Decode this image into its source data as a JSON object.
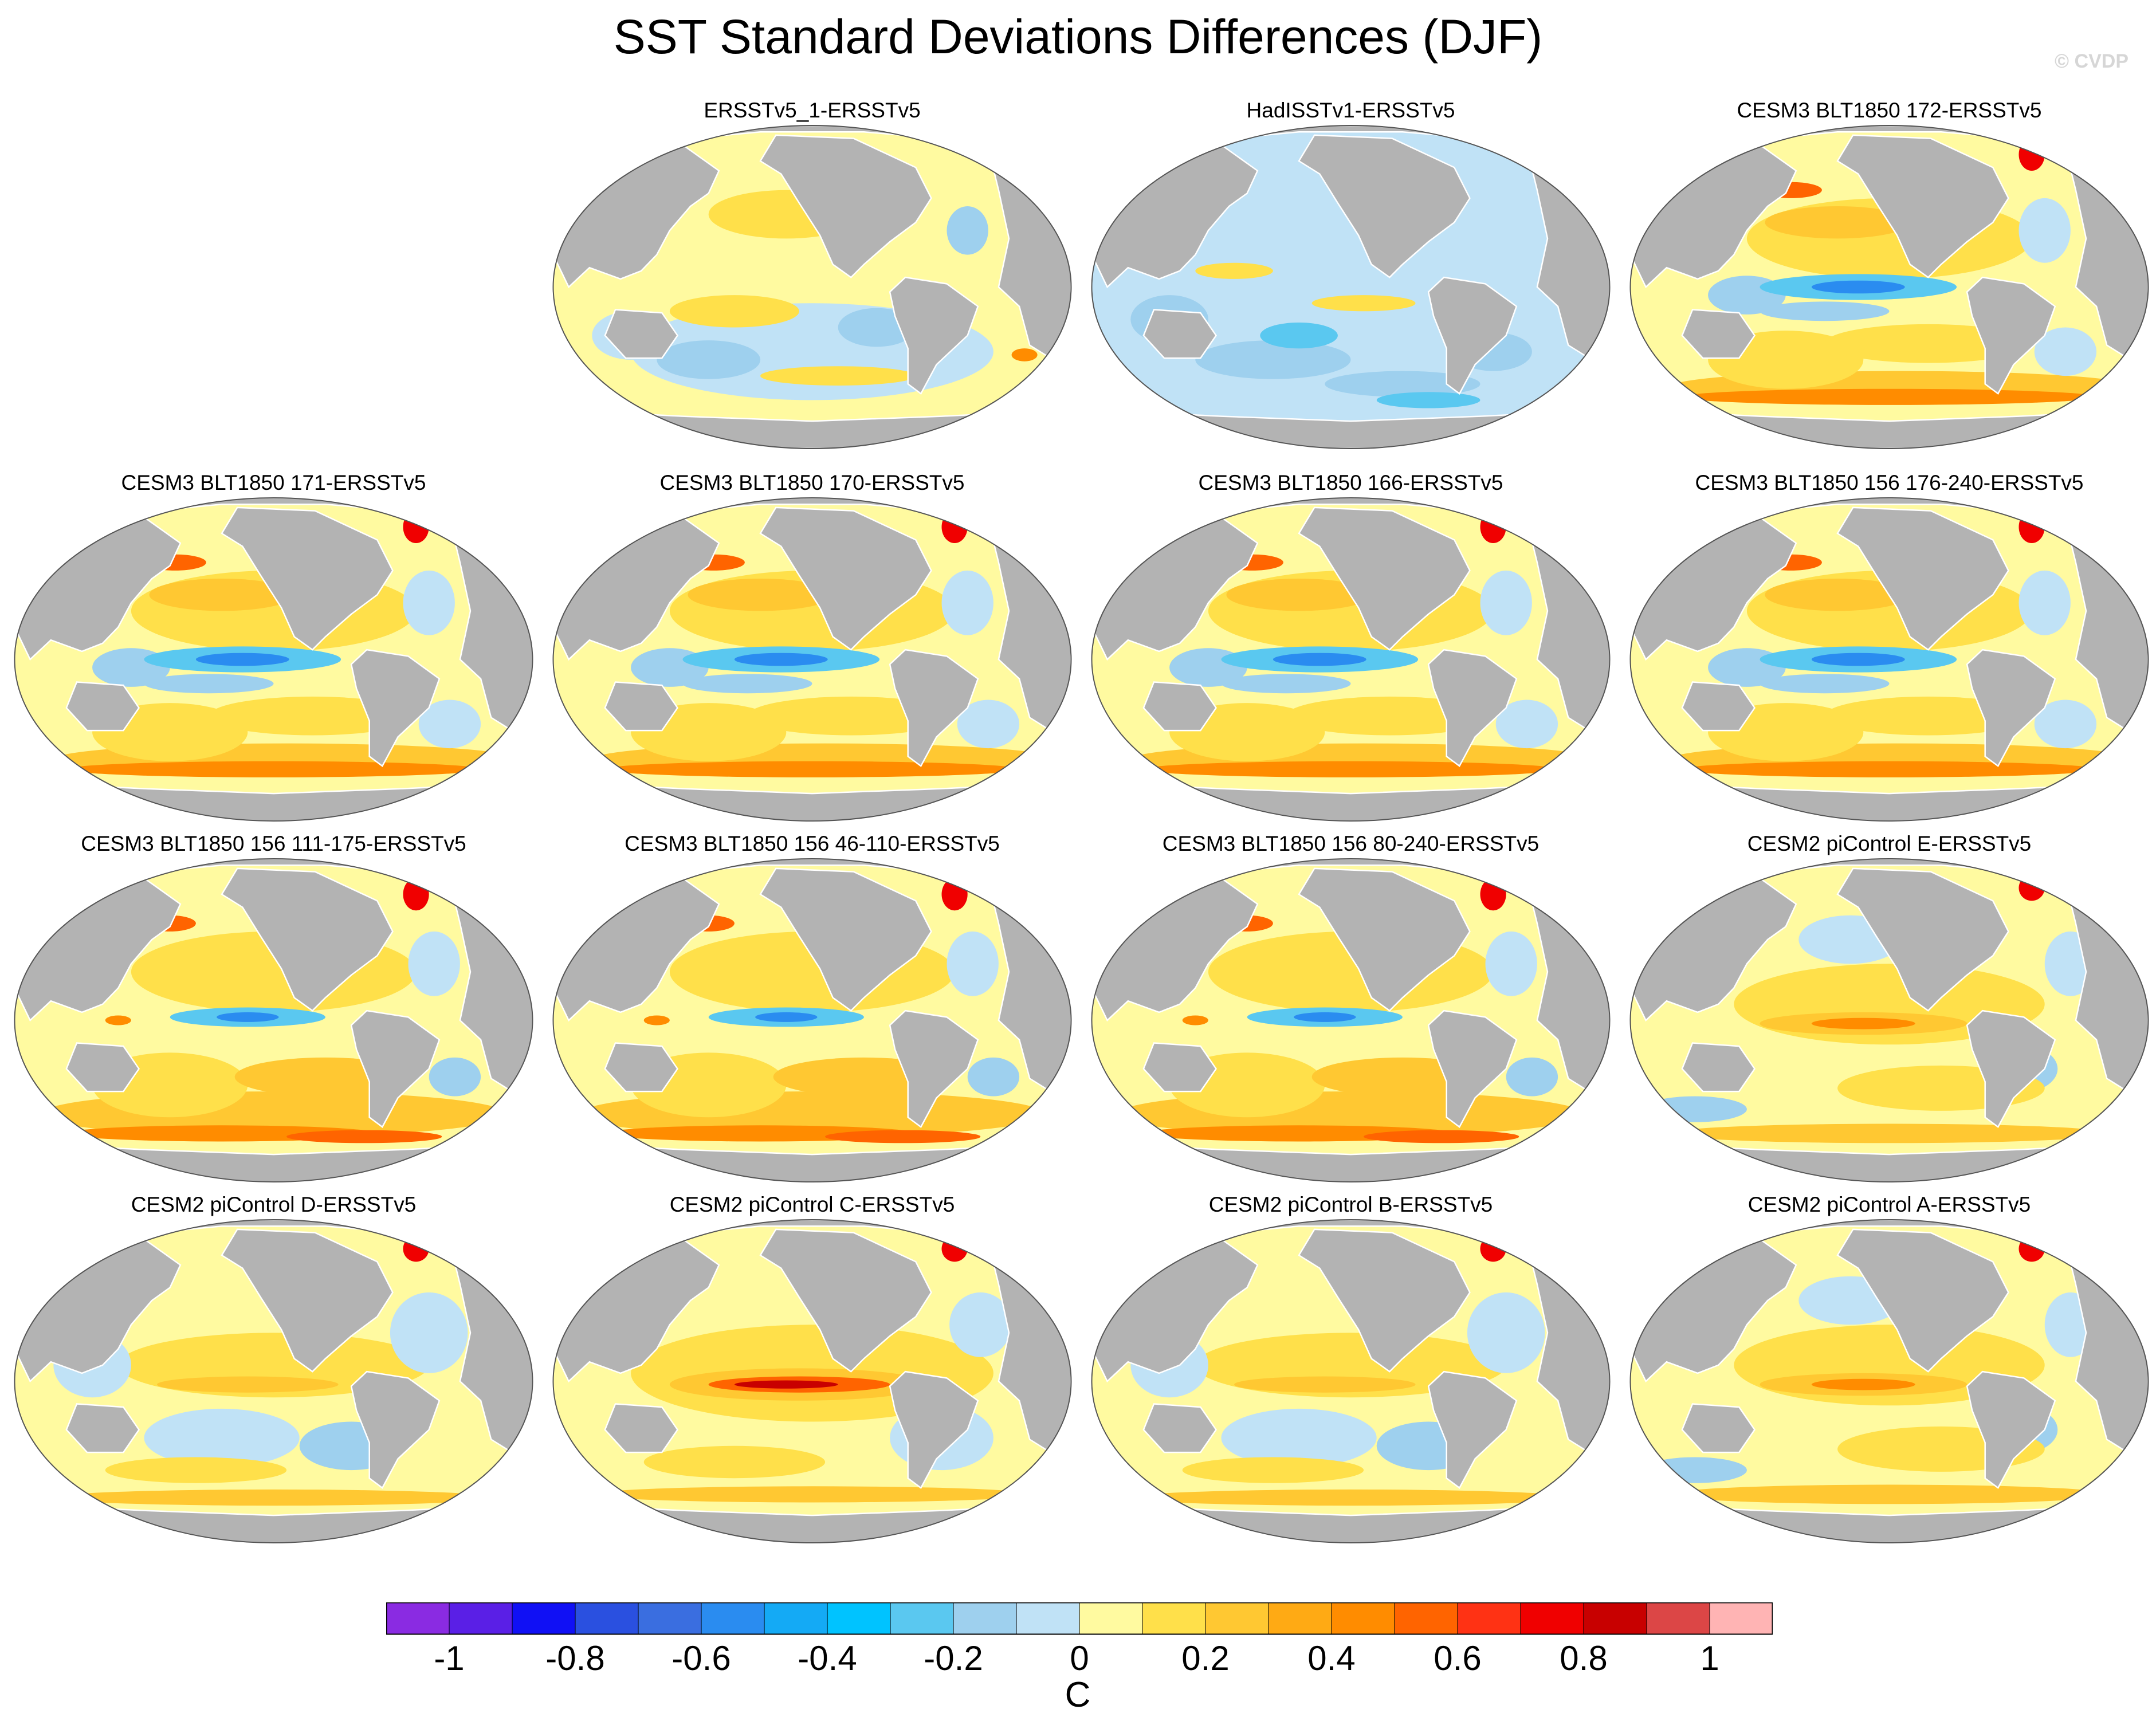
{
  "title": "SST Standard Deviations Differences (DJF)",
  "watermark": "© CVDP",
  "colors": {
    "land": "#b3b3b3",
    "coast": "#ffffff",
    "background": "#ffffff"
  },
  "panels": [
    {
      "label": "ERSSTv5_1-ERSSTv5",
      "pattern": "mixed-small"
    },
    {
      "label": "HadISSTv1-ERSSTv5",
      "pattern": "negative"
    },
    {
      "label": "CESM3 BLT1850 172-ERSSTv5",
      "pattern": "cesm3"
    },
    {
      "label": "CESM3 BLT1850 171-ERSSTv5",
      "pattern": "cesm3"
    },
    {
      "label": "CESM3 BLT1850 170-ERSSTv5",
      "pattern": "cesm3"
    },
    {
      "label": "CESM3 BLT1850 166-ERSSTv5",
      "pattern": "cesm3"
    },
    {
      "label": "CESM3 BLT1850 156 176-240-ERSSTv5",
      "pattern": "cesm3"
    },
    {
      "label": "CESM3 BLT1850 156 111-175-ERSSTv5",
      "pattern": "cesm3-warm"
    },
    {
      "label": "CESM3 BLT1850 156 46-110-ERSSTv5",
      "pattern": "cesm3-warm"
    },
    {
      "label": "CESM3 BLT1850 156 80-240-ERSSTv5",
      "pattern": "cesm3-warm"
    },
    {
      "label": "CESM2 piControl E-ERSSTv5",
      "pattern": "cesm2"
    },
    {
      "label": "CESM2 piControl D-ERSSTv5",
      "pattern": "cesm2-weak"
    },
    {
      "label": "CESM2 piControl C-ERSSTv5",
      "pattern": "cesm2-strong"
    },
    {
      "label": "CESM2 piControl B-ERSSTv5",
      "pattern": "cesm2-weak"
    },
    {
      "label": "CESM2 piControl A-ERSSTv5",
      "pattern": "cesm2"
    }
  ],
  "colorbar": {
    "unit": "C",
    "colors": [
      "#8a2be2",
      "#5a1fe6",
      "#1010f5",
      "#2a50e0",
      "#3a6ee0",
      "#2a8cf0",
      "#14aaf5",
      "#00c3ff",
      "#5ac8f0",
      "#9ed0ee",
      "#c0e2f6",
      "#fffaa0",
      "#ffe04a",
      "#ffc832",
      "#ffaa14",
      "#ff8c00",
      "#ff6400",
      "#ff3214",
      "#f00000",
      "#c80000",
      "#dc4646",
      "#ffb4b4"
    ],
    "tick_labels": [
      "-1",
      "-0.8",
      "-0.6",
      "-0.4",
      "-0.2",
      "0",
      "0.2",
      "0.4",
      "0.6",
      "0.8",
      "1"
    ]
  }
}
